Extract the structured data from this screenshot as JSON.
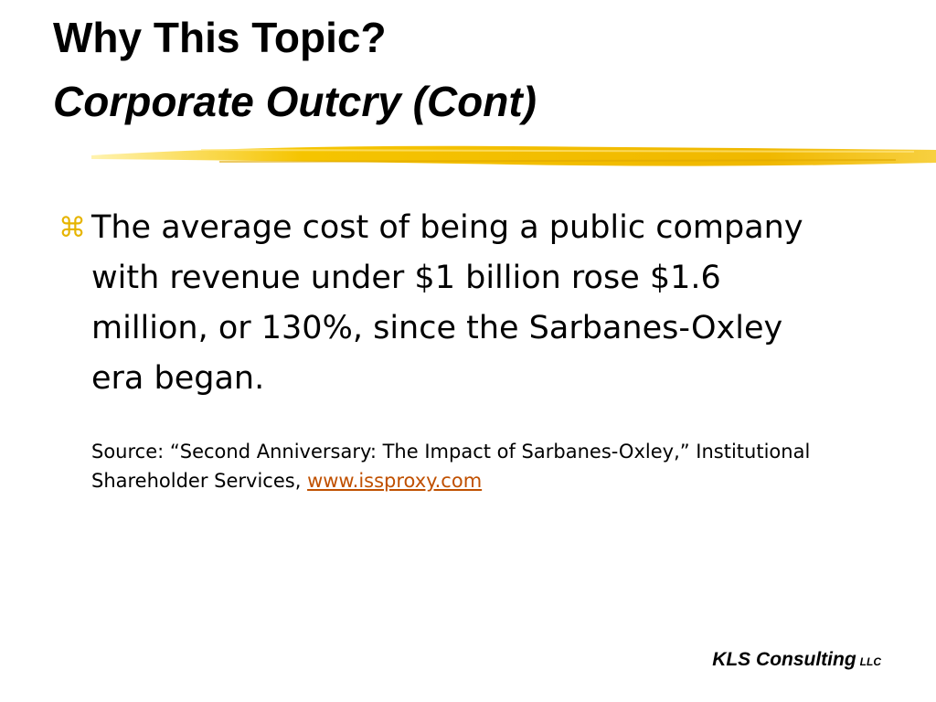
{
  "title": {
    "line1": "Why This Topic?",
    "line2": "Corporate Outcry (Cont)"
  },
  "bullet": {
    "symbol": "⌘",
    "text": "The average cost of being a public company with revenue under $1 billion rose $1.6 million, or 130%, since the Sarbanes-Oxley era began."
  },
  "source": {
    "text": "Source: “Second Anniversary: The Impact of Sarbanes-Oxley,” Institutional Shareholder Services, ",
    "link": "www.issproxy.com"
  },
  "footer": {
    "name": "KLS Consulting",
    "suffix": "LLC"
  }
}
